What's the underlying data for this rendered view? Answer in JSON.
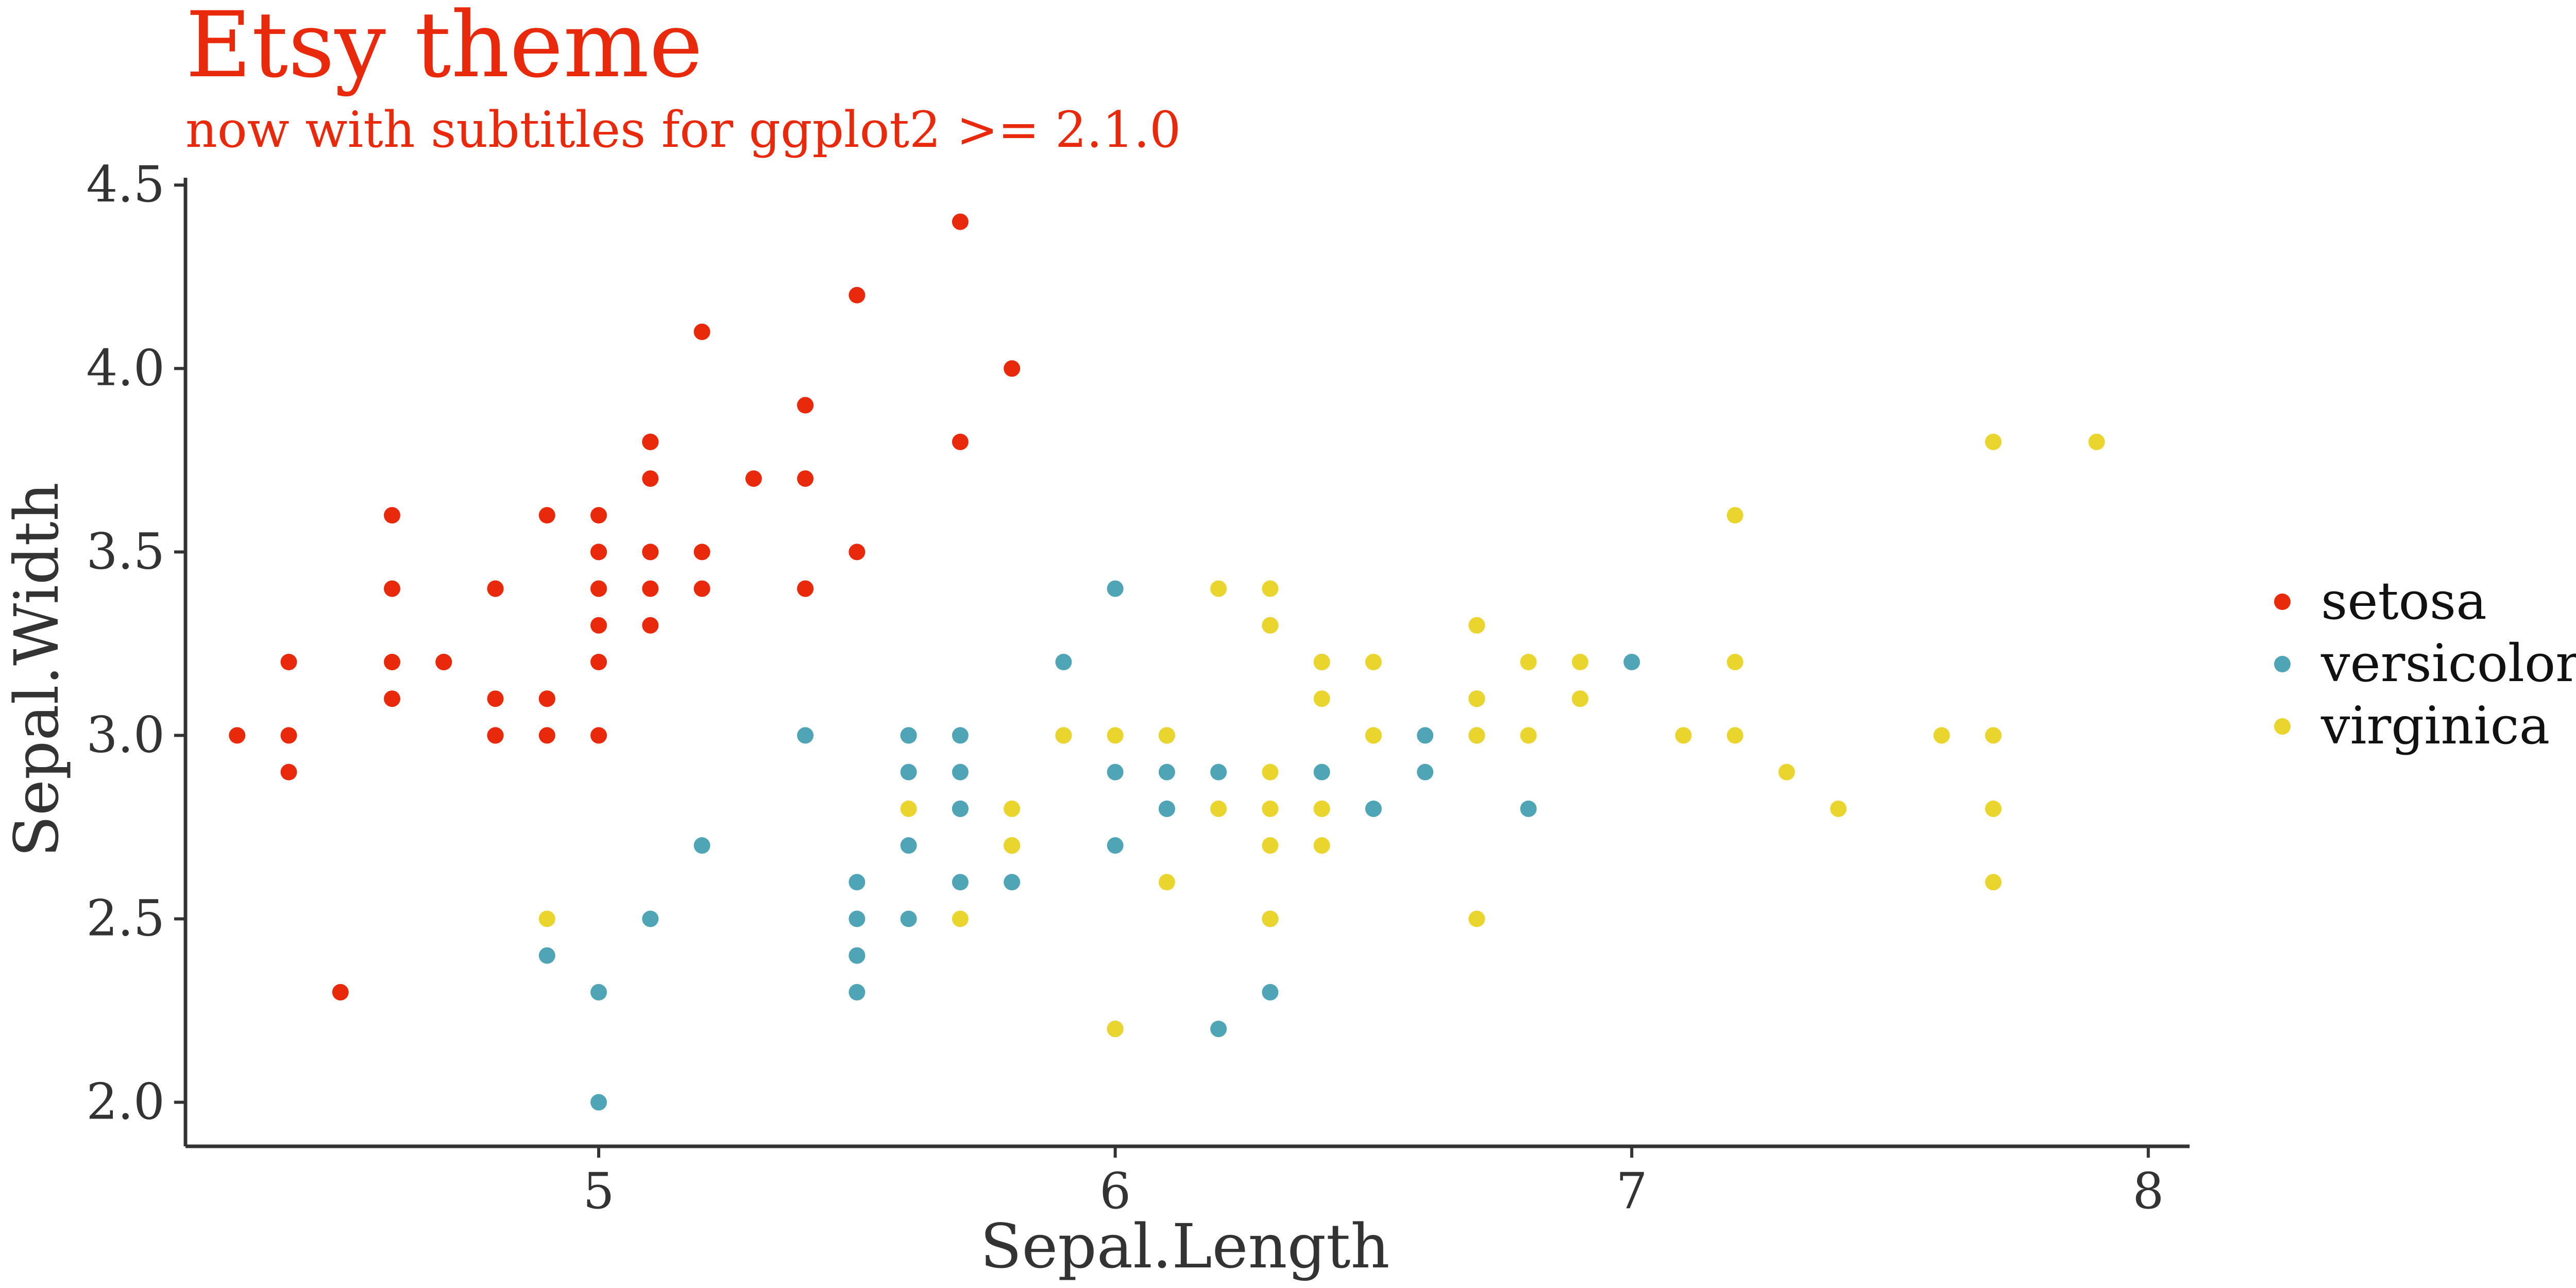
{
  "chart_data": {
    "type": "scatter",
    "title": "Etsy theme",
    "subtitle": "now with subtitles for ggplot2 >= 2.1.0",
    "xlabel": "Sepal.Length",
    "ylabel": "Sepal.Width",
    "xlim": [
      4.2,
      8.08
    ],
    "ylim": [
      1.88,
      4.52
    ],
    "x_ticks": [
      5,
      6,
      7,
      8
    ],
    "x_tick_labels": [
      "5",
      "6",
      "7",
      "8"
    ],
    "y_ticks": [
      2.0,
      2.5,
      3.0,
      3.5,
      4.0,
      4.5
    ],
    "y_tick_labels": [
      "2.0",
      "2.5",
      "3.0",
      "3.5",
      "4.0",
      "4.5"
    ],
    "grid": false,
    "legend_position": "right",
    "series": [
      {
        "name": "setosa",
        "color": "#E8290B",
        "points": [
          [
            5.1,
            3.5
          ],
          [
            4.9,
            3.0
          ],
          [
            4.7,
            3.2
          ],
          [
            4.6,
            3.1
          ],
          [
            5.0,
            3.6
          ],
          [
            5.4,
            3.9
          ],
          [
            4.6,
            3.4
          ],
          [
            5.0,
            3.4
          ],
          [
            4.4,
            2.9
          ],
          [
            4.9,
            3.1
          ],
          [
            5.4,
            3.7
          ],
          [
            4.8,
            3.4
          ],
          [
            4.8,
            3.0
          ],
          [
            4.3,
            3.0
          ],
          [
            5.8,
            4.0
          ],
          [
            5.7,
            4.4
          ],
          [
            5.4,
            3.9
          ],
          [
            5.1,
            3.5
          ],
          [
            5.7,
            3.8
          ],
          [
            5.1,
            3.8
          ],
          [
            5.4,
            3.4
          ],
          [
            5.1,
            3.7
          ],
          [
            4.6,
            3.6
          ],
          [
            5.1,
            3.3
          ],
          [
            4.8,
            3.4
          ],
          [
            5.0,
            3.0
          ],
          [
            5.0,
            3.4
          ],
          [
            5.2,
            3.5
          ],
          [
            5.2,
            3.4
          ],
          [
            4.7,
            3.2
          ],
          [
            4.8,
            3.1
          ],
          [
            5.4,
            3.4
          ],
          [
            5.2,
            4.1
          ],
          [
            5.5,
            4.2
          ],
          [
            4.9,
            3.1
          ],
          [
            5.0,
            3.2
          ],
          [
            5.5,
            3.5
          ],
          [
            4.9,
            3.6
          ],
          [
            4.4,
            3.0
          ],
          [
            5.1,
            3.4
          ],
          [
            5.0,
            3.5
          ],
          [
            4.5,
            2.3
          ],
          [
            4.4,
            3.2
          ],
          [
            5.0,
            3.5
          ],
          [
            5.1,
            3.8
          ],
          [
            4.8,
            3.0
          ],
          [
            5.1,
            3.8
          ],
          [
            4.6,
            3.2
          ],
          [
            5.3,
            3.7
          ],
          [
            5.0,
            3.3
          ]
        ]
      },
      {
        "name": "versicolor",
        "color": "#4FA5B5",
        "points": [
          [
            7.0,
            3.2
          ],
          [
            6.4,
            3.2
          ],
          [
            6.9,
            3.1
          ],
          [
            5.5,
            2.3
          ],
          [
            6.5,
            2.8
          ],
          [
            5.7,
            2.8
          ],
          [
            6.3,
            3.3
          ],
          [
            4.9,
            2.4
          ],
          [
            6.6,
            2.9
          ],
          [
            5.2,
            2.7
          ],
          [
            5.0,
            2.0
          ],
          [
            5.9,
            3.0
          ],
          [
            6.0,
            2.2
          ],
          [
            6.1,
            2.9
          ],
          [
            5.6,
            2.9
          ],
          [
            6.7,
            3.1
          ],
          [
            5.6,
            3.0
          ],
          [
            5.8,
            2.7
          ],
          [
            6.2,
            2.2
          ],
          [
            5.6,
            2.5
          ],
          [
            5.9,
            3.2
          ],
          [
            6.1,
            2.8
          ],
          [
            6.3,
            2.5
          ],
          [
            6.1,
            2.8
          ],
          [
            6.4,
            2.9
          ],
          [
            6.6,
            3.0
          ],
          [
            6.8,
            2.8
          ],
          [
            6.7,
            3.0
          ],
          [
            6.0,
            2.9
          ],
          [
            5.7,
            2.6
          ],
          [
            5.5,
            2.4
          ],
          [
            5.5,
            2.4
          ],
          [
            5.8,
            2.7
          ],
          [
            6.0,
            2.7
          ],
          [
            5.4,
            3.0
          ],
          [
            6.0,
            3.4
          ],
          [
            6.7,
            3.1
          ],
          [
            6.3,
            2.3
          ],
          [
            5.6,
            3.0
          ],
          [
            5.5,
            2.5
          ],
          [
            5.5,
            2.6
          ],
          [
            6.1,
            3.0
          ],
          [
            5.8,
            2.6
          ],
          [
            5.0,
            2.3
          ],
          [
            5.6,
            2.7
          ],
          [
            5.7,
            3.0
          ],
          [
            5.7,
            2.9
          ],
          [
            6.2,
            2.9
          ],
          [
            5.1,
            2.5
          ],
          [
            5.7,
            2.8
          ]
        ]
      },
      {
        "name": "virginica",
        "color": "#EAD52E",
        "points": [
          [
            6.3,
            3.3
          ],
          [
            5.8,
            2.7
          ],
          [
            7.1,
            3.0
          ],
          [
            6.3,
            2.9
          ],
          [
            6.5,
            3.0
          ],
          [
            7.6,
            3.0
          ],
          [
            4.9,
            2.5
          ],
          [
            7.3,
            2.9
          ],
          [
            6.7,
            2.5
          ],
          [
            7.2,
            3.6
          ],
          [
            6.5,
            3.2
          ],
          [
            6.4,
            2.7
          ],
          [
            6.8,
            3.0
          ],
          [
            5.7,
            2.5
          ],
          [
            5.8,
            2.8
          ],
          [
            6.4,
            3.2
          ],
          [
            6.5,
            3.0
          ],
          [
            7.7,
            3.8
          ],
          [
            7.7,
            2.6
          ],
          [
            6.0,
            2.2
          ],
          [
            6.9,
            3.2
          ],
          [
            5.6,
            2.8
          ],
          [
            7.7,
            2.8
          ],
          [
            6.3,
            2.7
          ],
          [
            6.7,
            3.3
          ],
          [
            7.2,
            3.2
          ],
          [
            6.2,
            2.8
          ],
          [
            6.1,
            3.0
          ],
          [
            6.4,
            2.8
          ],
          [
            7.2,
            3.0
          ],
          [
            7.4,
            2.8
          ],
          [
            7.9,
            3.8
          ],
          [
            6.4,
            2.8
          ],
          [
            6.3,
            2.8
          ],
          [
            6.1,
            2.6
          ],
          [
            7.7,
            3.0
          ],
          [
            6.3,
            3.4
          ],
          [
            6.4,
            3.1
          ],
          [
            6.0,
            3.0
          ],
          [
            6.9,
            3.1
          ],
          [
            6.7,
            3.1
          ],
          [
            6.9,
            3.1
          ],
          [
            5.8,
            2.7
          ],
          [
            6.8,
            3.2
          ],
          [
            6.7,
            3.3
          ],
          [
            6.7,
            3.0
          ],
          [
            6.3,
            2.5
          ],
          [
            6.5,
            3.0
          ],
          [
            6.2,
            3.4
          ],
          [
            5.9,
            3.0
          ]
        ]
      }
    ]
  }
}
